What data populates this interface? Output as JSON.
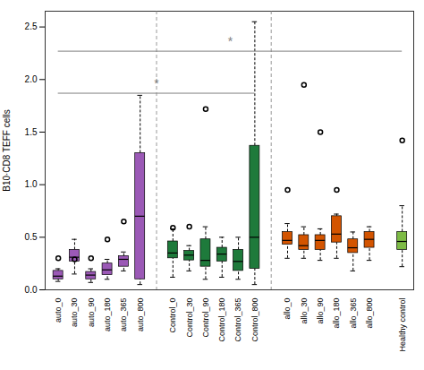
{
  "chart_data": {
    "type": "box",
    "ylabel": "B10·CD8 TEFF cells",
    "ylim": [
      0.0,
      2.65
    ],
    "yticks": [
      {
        "value": 0,
        "label": "0.0"
      },
      0.5,
      {
        "value": 1,
        "label": "1.0"
      },
      1.5,
      {
        "value": 2,
        "label": "2.0"
      },
      2.5
    ],
    "series": [
      {
        "color": "#9b59b6",
        "boxes": [
          {
            "name": "auto_0",
            "whislo": 0.08,
            "q1": 0.1,
            "med": 0.13,
            "q3": 0.18,
            "whishi": 0.2,
            "fliers": [
              0.3
            ]
          },
          {
            "name": "auto_30",
            "whislo": 0.15,
            "q1": 0.27,
            "med": 0.31,
            "q3": 0.38,
            "whishi": 0.48,
            "fliers": [
              0.29
            ]
          },
          {
            "name": "auto_90",
            "whislo": 0.07,
            "q1": 0.1,
            "med": 0.14,
            "q3": 0.17,
            "whishi": 0.2,
            "fliers": [
              0.3
            ]
          },
          {
            "name": "auto_180",
            "whislo": 0.1,
            "q1": 0.14,
            "med": 0.19,
            "q3": 0.25,
            "whishi": 0.29,
            "fliers": [
              0.48
            ]
          },
          {
            "name": "auto_365",
            "whislo": 0.18,
            "q1": 0.22,
            "med": 0.29,
            "q3": 0.32,
            "whishi": 0.36,
            "fliers": [
              0.65
            ]
          },
          {
            "name": "auto_800",
            "whislo": 0.05,
            "q1": 0.1,
            "med": 0.7,
            "q3": 1.3,
            "whishi": 1.85,
            "fliers": []
          }
        ]
      },
      {
        "color": "#1e7a3b",
        "boxes": [
          {
            "name": "Control_0",
            "whislo": 0.12,
            "q1": 0.3,
            "med": 0.35,
            "q3": 0.46,
            "whishi": 0.58,
            "fliers": [
              0.59
            ]
          },
          {
            "name": "Control_30",
            "whislo": 0.18,
            "q1": 0.28,
            "med": 0.33,
            "q3": 0.37,
            "whishi": 0.42,
            "fliers": [
              0.6
            ]
          },
          {
            "name": "Control_90",
            "whislo": 0.1,
            "q1": 0.22,
            "med": 0.28,
            "q3": 0.48,
            "whishi": 0.6,
            "fliers": [
              1.72
            ]
          },
          {
            "name": "Control_180",
            "whislo": 0.12,
            "q1": 0.27,
            "med": 0.34,
            "q3": 0.4,
            "whishi": 0.5,
            "fliers": []
          },
          {
            "name": "Control_365",
            "whislo": 0.1,
            "q1": 0.18,
            "med": 0.27,
            "q3": 0.38,
            "whishi": 0.5,
            "fliers": []
          },
          {
            "name": "Control_800",
            "whislo": 0.05,
            "q1": 0.2,
            "med": 0.5,
            "q3": 1.37,
            "whishi": 2.55,
            "fliers": []
          }
        ]
      },
      {
        "color": "#d35400",
        "boxes": [
          {
            "name": "allo_0",
            "whislo": 0.3,
            "q1": 0.43,
            "med": 0.47,
            "q3": 0.55,
            "whishi": 0.63,
            "fliers": [
              0.95
            ]
          },
          {
            "name": "allo_30",
            "whislo": 0.3,
            "q1": 0.38,
            "med": 0.42,
            "q3": 0.52,
            "whishi": 0.6,
            "fliers": [
              1.95
            ]
          },
          {
            "name": "allo_90",
            "whislo": 0.28,
            "q1": 0.38,
            "med": 0.47,
            "q3": 0.52,
            "whishi": 0.58,
            "fliers": [
              1.5
            ]
          },
          {
            "name": "allo_180",
            "whislo": 0.3,
            "q1": 0.45,
            "med": 0.53,
            "q3": 0.7,
            "whishi": 0.72,
            "fliers": [
              0.95
            ]
          },
          {
            "name": "allo_365",
            "whislo": 0.18,
            "q1": 0.35,
            "med": 0.4,
            "q3": 0.48,
            "whishi": 0.55,
            "fliers": []
          },
          {
            "name": "allo_800",
            "whislo": 0.28,
            "q1": 0.4,
            "med": 0.48,
            "q3": 0.55,
            "whishi": 0.6,
            "fliers": []
          }
        ]
      },
      {
        "color": "#7dbb45",
        "boxes": [
          {
            "name": "Healthy control",
            "whislo": 0.22,
            "q1": 0.38,
            "med": 0.46,
            "q3": 0.55,
            "whishi": 0.8,
            "fliers": [
              1.42
            ]
          }
        ]
      }
    ],
    "annotations": [
      {
        "from": "auto_0",
        "to": "Control_800",
        "y": 1.87,
        "text": "*",
        "text_y": 1.92
      },
      {
        "from": "auto_0",
        "to": "Healthy control",
        "y": 2.27,
        "text": "*",
        "text_y": 2.32
      }
    ]
  }
}
